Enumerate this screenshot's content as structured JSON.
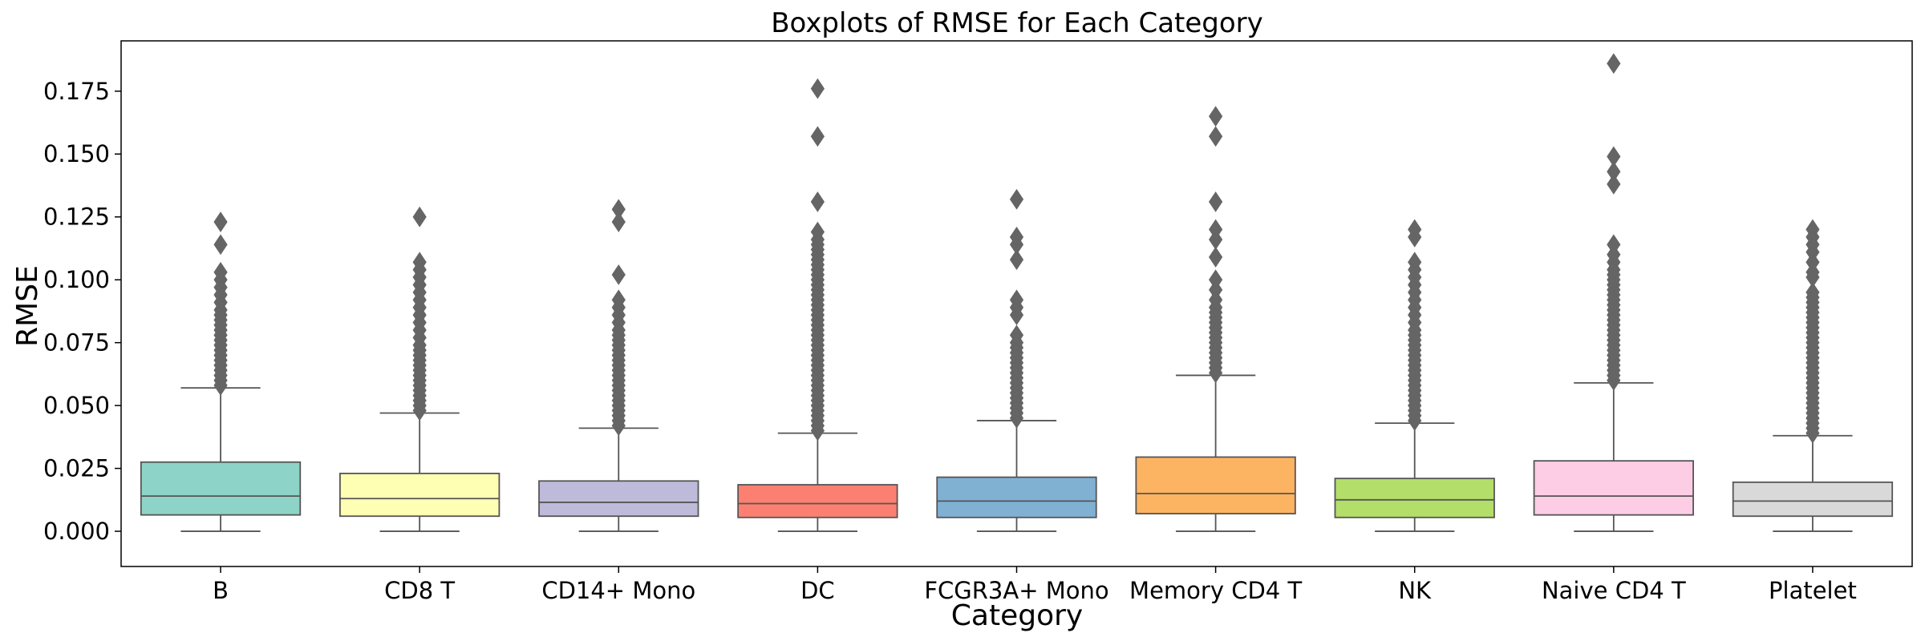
{
  "chart_data": {
    "type": "boxplot",
    "title": "Boxplots of RMSE for Each Category",
    "xlabel": "Category",
    "ylabel": "RMSE",
    "ylim": [
      -0.014,
      0.195
    ],
    "yticks": [
      "0.000",
      "0.025",
      "0.050",
      "0.075",
      "0.100",
      "0.125",
      "0.150",
      "0.175"
    ],
    "grid": false,
    "legend": "none",
    "categories": [
      "B",
      "CD8 T",
      "CD14+ Mono",
      "DC",
      "FCGR3A+ Mono",
      "Memory CD4 T",
      "NK",
      "Naive CD4 T",
      "Platelet"
    ],
    "colors": [
      "#8dd3c7",
      "#ffffb3",
      "#bebada",
      "#fb8072",
      "#80b1d3",
      "#fdb462",
      "#b3de69",
      "#fccde5",
      "#d9d9d9"
    ],
    "edge_color": "#555555",
    "boxes": [
      {
        "min": 0.0,
        "q1": 0.0065,
        "median": 0.014,
        "q3": 0.0275,
        "whisker_high": 0.057,
        "outliers": [
          0.058,
          0.06,
          0.062,
          0.064,
          0.066,
          0.068,
          0.07,
          0.072,
          0.074,
          0.076,
          0.078,
          0.08,
          0.082,
          0.084,
          0.086,
          0.088,
          0.091,
          0.094,
          0.097,
          0.1,
          0.103,
          0.114,
          0.123
        ]
      },
      {
        "min": 0.0,
        "q1": 0.006,
        "median": 0.013,
        "q3": 0.023,
        "whisker_high": 0.047,
        "outliers": [
          0.048,
          0.05,
          0.052,
          0.054,
          0.056,
          0.058,
          0.06,
          0.062,
          0.064,
          0.066,
          0.068,
          0.07,
          0.072,
          0.074,
          0.077,
          0.08,
          0.083,
          0.086,
          0.089,
          0.092,
          0.095,
          0.098,
          0.101,
          0.104,
          0.107,
          0.125
        ]
      },
      {
        "min": 0.0,
        "q1": 0.006,
        "median": 0.0115,
        "q3": 0.02,
        "whisker_high": 0.041,
        "outliers": [
          0.042,
          0.044,
          0.046,
          0.048,
          0.05,
          0.052,
          0.054,
          0.056,
          0.058,
          0.06,
          0.062,
          0.064,
          0.066,
          0.068,
          0.07,
          0.072,
          0.074,
          0.076,
          0.078,
          0.08,
          0.083,
          0.086,
          0.089,
          0.092,
          0.102,
          0.123,
          0.128
        ]
      },
      {
        "min": 0.0,
        "q1": 0.0055,
        "median": 0.011,
        "q3": 0.0185,
        "whisker_high": 0.039,
        "outliers": [
          0.04,
          0.042,
          0.044,
          0.046,
          0.048,
          0.05,
          0.052,
          0.054,
          0.056,
          0.058,
          0.06,
          0.062,
          0.064,
          0.066,
          0.068,
          0.07,
          0.072,
          0.074,
          0.076,
          0.078,
          0.08,
          0.082,
          0.084,
          0.086,
          0.088,
          0.09,
          0.092,
          0.094,
          0.096,
          0.098,
          0.1,
          0.102,
          0.104,
          0.106,
          0.108,
          0.11,
          0.112,
          0.114,
          0.116,
          0.119,
          0.131,
          0.157,
          0.176
        ]
      },
      {
        "min": 0.0,
        "q1": 0.0055,
        "median": 0.012,
        "q3": 0.0215,
        "whisker_high": 0.044,
        "outliers": [
          0.045,
          0.047,
          0.049,
          0.051,
          0.053,
          0.055,
          0.057,
          0.059,
          0.061,
          0.063,
          0.065,
          0.067,
          0.069,
          0.071,
          0.073,
          0.075,
          0.078,
          0.086,
          0.089,
          0.092,
          0.108,
          0.114,
          0.117,
          0.132
        ]
      },
      {
        "min": 0.0,
        "q1": 0.007,
        "median": 0.015,
        "q3": 0.0295,
        "whisker_high": 0.062,
        "outliers": [
          0.063,
          0.065,
          0.067,
          0.069,
          0.071,
          0.073,
          0.075,
          0.077,
          0.079,
          0.081,
          0.083,
          0.085,
          0.087,
          0.089,
          0.092,
          0.096,
          0.1,
          0.109,
          0.116,
          0.12,
          0.131,
          0.157,
          0.165
        ]
      },
      {
        "min": 0.0,
        "q1": 0.0055,
        "median": 0.0125,
        "q3": 0.021,
        "whisker_high": 0.043,
        "outliers": [
          0.044,
          0.046,
          0.048,
          0.05,
          0.052,
          0.054,
          0.056,
          0.058,
          0.06,
          0.062,
          0.064,
          0.066,
          0.068,
          0.07,
          0.072,
          0.074,
          0.076,
          0.078,
          0.08,
          0.083,
          0.086,
          0.089,
          0.092,
          0.095,
          0.098,
          0.101,
          0.104,
          0.107,
          0.117,
          0.12
        ]
      },
      {
        "min": 0.0,
        "q1": 0.0065,
        "median": 0.014,
        "q3": 0.028,
        "whisker_high": 0.059,
        "outliers": [
          0.06,
          0.062,
          0.064,
          0.066,
          0.068,
          0.07,
          0.072,
          0.074,
          0.076,
          0.078,
          0.08,
          0.082,
          0.084,
          0.086,
          0.088,
          0.09,
          0.092,
          0.094,
          0.096,
          0.098,
          0.1,
          0.102,
          0.104,
          0.107,
          0.11,
          0.114,
          0.138,
          0.143,
          0.149,
          0.186
        ]
      },
      {
        "min": 0.0,
        "q1": 0.006,
        "median": 0.012,
        "q3": 0.0195,
        "whisker_high": 0.038,
        "outliers": [
          0.039,
          0.041,
          0.043,
          0.045,
          0.047,
          0.049,
          0.051,
          0.053,
          0.055,
          0.057,
          0.059,
          0.061,
          0.063,
          0.065,
          0.067,
          0.069,
          0.071,
          0.073,
          0.075,
          0.077,
          0.079,
          0.081,
          0.083,
          0.085,
          0.087,
          0.089,
          0.091,
          0.093,
          0.095,
          0.101,
          0.103,
          0.107,
          0.111,
          0.114,
          0.117,
          0.12
        ]
      }
    ]
  }
}
